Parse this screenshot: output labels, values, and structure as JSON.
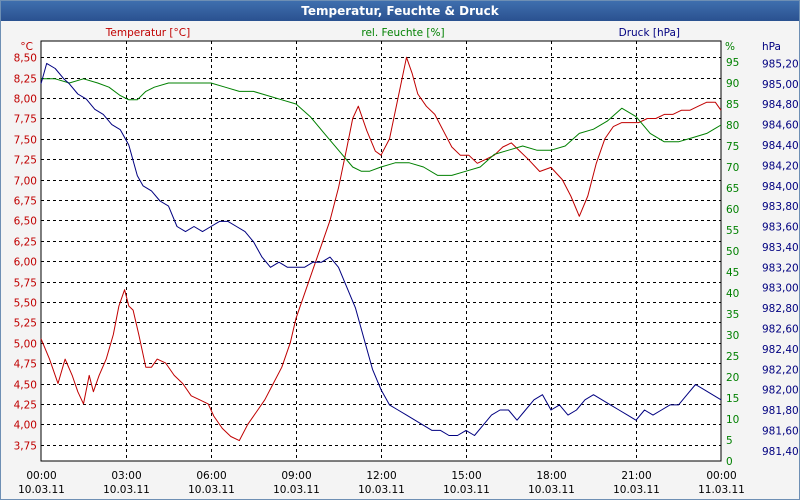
{
  "window": {
    "title": "Temperatur, Feuchte & Druck"
  },
  "chart_data": {
    "type": "line",
    "title": "Temperatur, Feuchte & Druck",
    "grid": true,
    "x_ticks": [
      {
        "time": "00:00",
        "date": "10.03.11"
      },
      {
        "time": "03:00",
        "date": "10.03.11"
      },
      {
        "time": "06:00",
        "date": "10.03.11"
      },
      {
        "time": "09:00",
        "date": "10.03.11"
      },
      {
        "time": "12:00",
        "date": "10.03.11"
      },
      {
        "time": "15:00",
        "date": "10.03.11"
      },
      {
        "time": "18:00",
        "date": "10.03.11"
      },
      {
        "time": "21:00",
        "date": "10.03.11"
      },
      {
        "time": "00:00",
        "date": "11.03.11"
      }
    ],
    "xlim_hours": [
      0,
      24
    ],
    "axes": {
      "temp": {
        "unit": "°C",
        "label": "Temperatur [°C]",
        "color": "#c00000",
        "min": 3.75,
        "max": 8.5,
        "ylim": [
          3.55,
          8.7
        ],
        "ticks": [
          "3,75",
          "4,00",
          "4,25",
          "4,50",
          "4,75",
          "5,00",
          "5,25",
          "5,50",
          "5,75",
          "6,00",
          "6,25",
          "6,50",
          "6,75",
          "7,00",
          "7,25",
          "7,50",
          "7,75",
          "8,00",
          "8,25",
          "8,50"
        ]
      },
      "hum": {
        "unit": "%",
        "label": "rel. Feuchte [%]",
        "color": "#008000",
        "ylim": [
          0,
          100
        ],
        "ticks": [
          "0",
          "5",
          "10",
          "15",
          "20",
          "25",
          "30",
          "35",
          "40",
          "45",
          "50",
          "55",
          "60",
          "65",
          "70",
          "75",
          "80",
          "85",
          "90",
          "95"
        ]
      },
      "press": {
        "unit": "hPa",
        "label": "Druck [hPa]",
        "color": "#000080",
        "ylim": [
          981.3,
          985.42
        ],
        "ticks": [
          "981,40",
          "981,60",
          "981,80",
          "982,00",
          "982,20",
          "982,40",
          "982,60",
          "982,80",
          "983,00",
          "983,20",
          "983,40",
          "983,60",
          "983,80",
          "984,00",
          "984,20",
          "984,40",
          "984,60",
          "984,80",
          "985,00",
          "985,20"
        ]
      }
    },
    "series": [
      {
        "name": "Temperatur [°C]",
        "axis": "temp",
        "color": "#c00000",
        "x": [
          0,
          0.3,
          0.6,
          0.85,
          1.1,
          1.3,
          1.5,
          1.7,
          1.85,
          2.05,
          2.3,
          2.55,
          2.75,
          2.95,
          3.1,
          3.25,
          3.45,
          3.7,
          3.9,
          4.1,
          4.4,
          4.7,
          5.0,
          5.3,
          5.6,
          5.9,
          6.1,
          6.4,
          6.7,
          7.0,
          7.3,
          7.6,
          7.9,
          8.2,
          8.5,
          8.8,
          9.0,
          9.3,
          9.6,
          9.9,
          10.2,
          10.5,
          10.8,
          11.0,
          11.2,
          11.5,
          11.8,
          12.0,
          12.3,
          12.6,
          12.9,
          13.1,
          13.3,
          13.6,
          13.9,
          14.2,
          14.5,
          14.8,
          15.1,
          15.4,
          15.7,
          16.0,
          16.3,
          16.6,
          16.9,
          17.2,
          17.6,
          18.0,
          18.4,
          18.7,
          19.0,
          19.3,
          19.6,
          19.9,
          20.2,
          20.5,
          20.8,
          21.1,
          21.4,
          21.7,
          22.0,
          22.3,
          22.6,
          22.9,
          23.2,
          23.5,
          23.8,
          24.0
        ],
        "values": [
          5.05,
          4.8,
          4.5,
          4.8,
          4.6,
          4.4,
          4.25,
          4.6,
          4.4,
          4.6,
          4.8,
          5.1,
          5.45,
          5.65,
          5.45,
          5.4,
          5.1,
          4.7,
          4.7,
          4.8,
          4.75,
          4.6,
          4.5,
          4.35,
          4.3,
          4.25,
          4.1,
          3.95,
          3.85,
          3.8,
          4.0,
          4.15,
          4.3,
          4.5,
          4.7,
          5.0,
          5.3,
          5.6,
          5.9,
          6.2,
          6.5,
          6.9,
          7.4,
          7.75,
          7.9,
          7.6,
          7.35,
          7.3,
          7.5,
          8.0,
          8.5,
          8.3,
          8.05,
          7.9,
          7.8,
          7.6,
          7.4,
          7.3,
          7.3,
          7.2,
          7.25,
          7.3,
          7.4,
          7.45,
          7.35,
          7.25,
          7.1,
          7.15,
          7.0,
          6.8,
          6.55,
          6.8,
          7.2,
          7.5,
          7.65,
          7.7,
          7.7,
          7.7,
          7.75,
          7.75,
          7.8,
          7.8,
          7.85,
          7.85,
          7.9,
          7.95,
          7.95,
          7.85
        ]
      },
      {
        "name": "rel. Feuchte [%]",
        "axis": "hum",
        "color": "#008000",
        "x": [
          0,
          0.5,
          1.0,
          1.5,
          2.0,
          2.4,
          2.8,
          3.1,
          3.4,
          3.7,
          4.0,
          4.5,
          5.0,
          5.5,
          6.0,
          6.5,
          7.0,
          7.5,
          8.0,
          8.5,
          9.0,
          9.5,
          10.0,
          10.5,
          11.0,
          11.3,
          11.6,
          12.0,
          12.5,
          13.0,
          13.5,
          14.0,
          14.5,
          15.0,
          15.5,
          16.0,
          16.5,
          17.0,
          17.5,
          18.0,
          18.5,
          19.0,
          19.5,
          20.0,
          20.5,
          21.0,
          21.5,
          22.0,
          22.5,
          23.0,
          23.5,
          24.0
        ],
        "values": [
          91,
          91,
          90,
          91,
          90,
          89,
          87,
          86,
          86,
          88,
          89,
          90,
          90,
          90,
          90,
          89,
          88,
          88,
          87,
          86,
          85,
          82,
          78,
          74,
          70,
          69,
          69,
          70,
          71,
          71,
          70,
          68,
          68,
          69,
          70,
          73,
          74,
          75,
          74,
          74,
          75,
          78,
          79,
          81,
          84,
          82,
          78,
          76,
          76,
          77,
          78,
          80
        ]
      },
      {
        "name": "Druck [hPa]",
        "axis": "press",
        "color": "#000080",
        "x": [
          0,
          0.2,
          0.5,
          0.8,
          1.0,
          1.3,
          1.6,
          1.9,
          2.2,
          2.5,
          2.8,
          3.1,
          3.4,
          3.6,
          3.9,
          4.2,
          4.5,
          4.8,
          5.1,
          5.4,
          5.7,
          6.0,
          6.3,
          6.6,
          6.9,
          7.2,
          7.5,
          7.8,
          8.1,
          8.4,
          8.7,
          9.0,
          9.3,
          9.6,
          9.9,
          10.2,
          10.5,
          10.8,
          11.1,
          11.4,
          11.7,
          12.0,
          12.3,
          12.6,
          12.9,
          13.2,
          13.5,
          13.8,
          14.1,
          14.4,
          14.7,
          15.0,
          15.3,
          15.6,
          15.9,
          16.2,
          16.5,
          16.8,
          17.1,
          17.4,
          17.7,
          18.0,
          18.3,
          18.6,
          18.9,
          19.2,
          19.5,
          19.8,
          20.1,
          20.4,
          20.7,
          21.0,
          21.3,
          21.6,
          21.9,
          22.2,
          22.5,
          22.8,
          23.1,
          23.4,
          23.7,
          24.0
        ],
        "values": [
          985.0,
          985.2,
          985.15,
          985.05,
          985.0,
          984.9,
          984.85,
          984.75,
          984.7,
          984.6,
          984.55,
          984.4,
          984.1,
          984.0,
          983.95,
          983.85,
          983.8,
          983.6,
          983.55,
          983.6,
          983.55,
          983.6,
          983.65,
          983.65,
          983.6,
          983.55,
          983.45,
          983.3,
          983.2,
          983.25,
          983.2,
          983.2,
          983.2,
          983.25,
          983.25,
          983.3,
          983.2,
          983.0,
          982.8,
          982.5,
          982.2,
          982.0,
          981.85,
          981.8,
          981.75,
          981.7,
          981.65,
          981.6,
          981.6,
          981.55,
          981.55,
          981.6,
          981.55,
          981.65,
          981.75,
          981.8,
          981.8,
          981.7,
          981.8,
          981.9,
          981.95,
          981.8,
          981.85,
          981.75,
          981.8,
          981.9,
          981.95,
          981.9,
          981.85,
          981.8,
          981.75,
          981.7,
          981.8,
          981.75,
          981.8,
          981.85,
          981.85,
          981.95,
          982.05,
          982.0,
          981.95,
          981.9
        ]
      }
    ]
  }
}
